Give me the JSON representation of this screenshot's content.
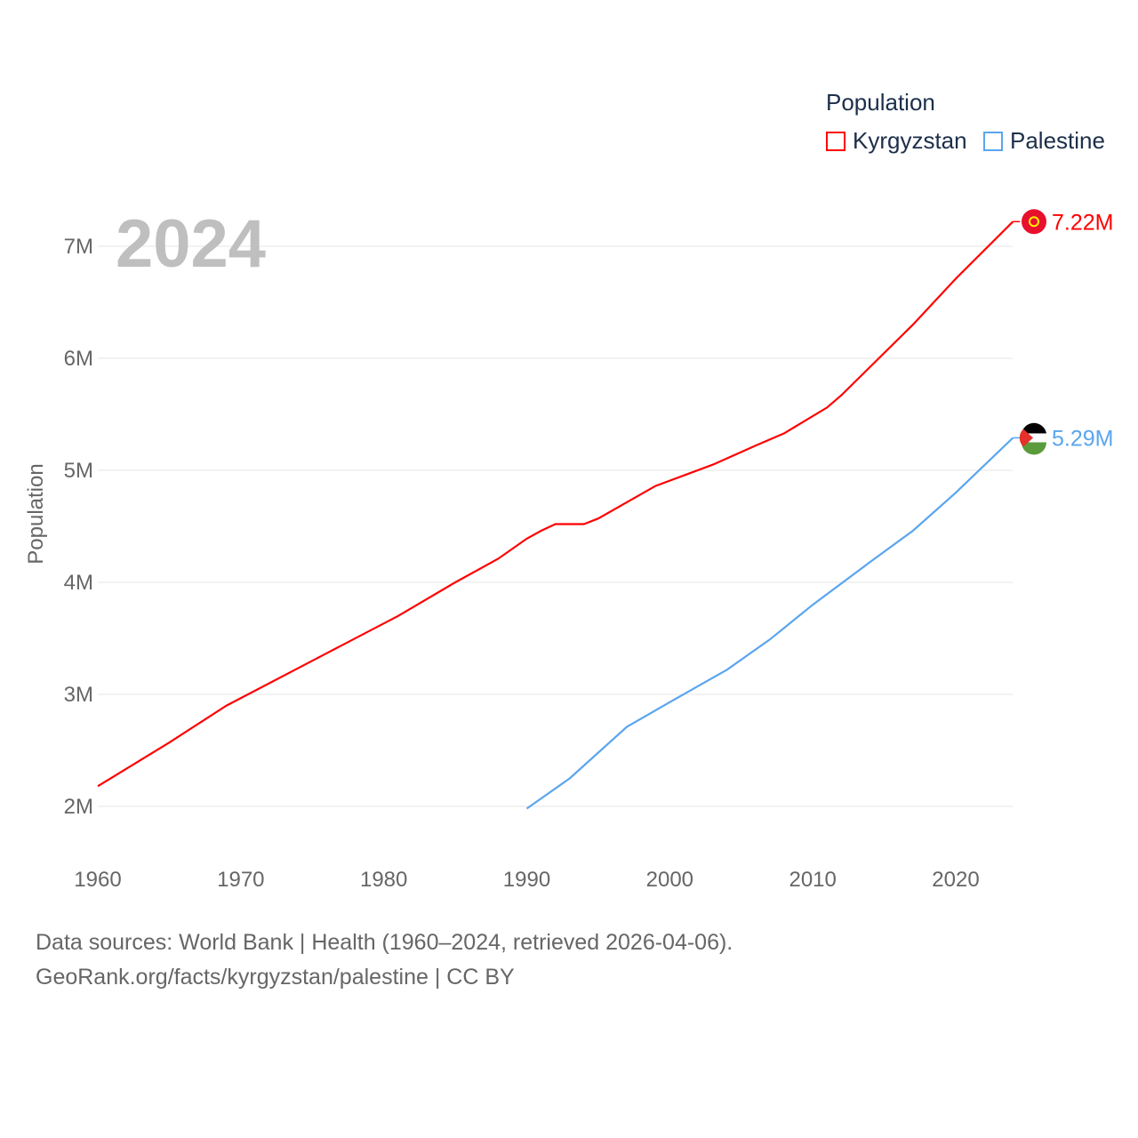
{
  "chart_data": {
    "type": "line",
    "ylabel": "Population",
    "xlabel": "",
    "year_label": "2024",
    "xlim": [
      1960,
      2024
    ],
    "ylim": [
      1.7,
      7.4
    ],
    "x_ticks": [
      1960,
      1970,
      1980,
      1990,
      2000,
      2010,
      2020
    ],
    "x_tick_labels": [
      "1960",
      "1970",
      "1980",
      "1990",
      "2000",
      "2010",
      "2020"
    ],
    "y_ticks": [
      2,
      3,
      4,
      5,
      6,
      7
    ],
    "y_tick_labels": [
      "2M",
      "3M",
      "4M",
      "5M",
      "6M",
      "7M"
    ],
    "grid": true,
    "legend": {
      "title": "Population",
      "placement": "top-right"
    },
    "series": [
      {
        "name": "Kyrgyzstan",
        "color": "#ff0000",
        "end_label": "7.22M",
        "x": [
          1960,
          1965,
          1969,
          1975,
          1981,
          1985,
          1988,
          1990,
          1991,
          1992,
          1994,
          1995,
          1999,
          2003,
          2006,
          2008,
          2011,
          2012,
          2017,
          2020,
          2024
        ],
        "y": [
          2.18,
          2.57,
          2.9,
          3.3,
          3.7,
          4.0,
          4.21,
          4.39,
          4.46,
          4.52,
          4.52,
          4.57,
          4.86,
          5.05,
          5.22,
          5.33,
          5.56,
          5.67,
          6.3,
          6.71,
          7.22
        ]
      },
      {
        "name": "Palestine",
        "color": "#5aa5ef",
        "end_label": "5.29M",
        "x": [
          1990,
          1993,
          1997,
          2000,
          2004,
          2007,
          2010,
          2014,
          2017,
          2020,
          2024
        ],
        "y": [
          1.98,
          2.25,
          2.71,
          2.93,
          3.22,
          3.49,
          3.8,
          4.18,
          4.46,
          4.8,
          5.29
        ]
      }
    ]
  },
  "footer": {
    "line1": "Data sources: World Bank | Health (1960–2024, retrieved 2026-04-06).",
    "line2": "GeoRank.org/facts/kyrgyzstan/palestine | CC BY"
  }
}
